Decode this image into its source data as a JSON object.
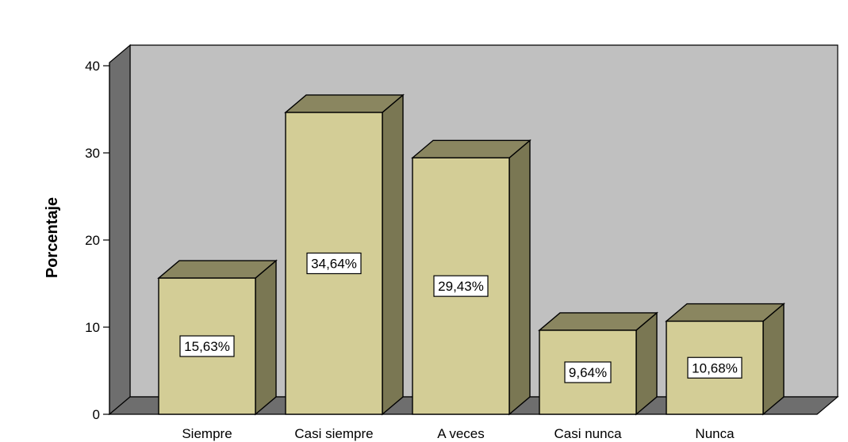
{
  "chart_data": {
    "type": "bar",
    "categories": [
      "Siempre",
      "Casi siempre",
      "A veces",
      "Casi nunca",
      "Nunca"
    ],
    "values": [
      15.63,
      34.64,
      29.43,
      9.64,
      10.68
    ],
    "data_labels": [
      "15,63%",
      "34,64%",
      "29,43%",
      "9,64%",
      "10,68%"
    ],
    "xlabel": "",
    "ylabel": "Porcentaje",
    "ylim": [
      0,
      40
    ],
    "yticks": [
      0,
      10,
      20,
      30,
      40
    ],
    "ytick_labels": [
      "0",
      "10",
      "20",
      "30",
      "40"
    ],
    "style": "3d",
    "grid": false,
    "colors": {
      "bar_front": "#d3cd96",
      "bar_top": "#8a8660",
      "bar_side": "#7a7753",
      "plot_back": "#c0c0c0",
      "plot_left_wall": "#6e6e6e",
      "plot_floor": "#6e6e6e",
      "outline": "#000000",
      "label_box": "#ffffff"
    }
  }
}
